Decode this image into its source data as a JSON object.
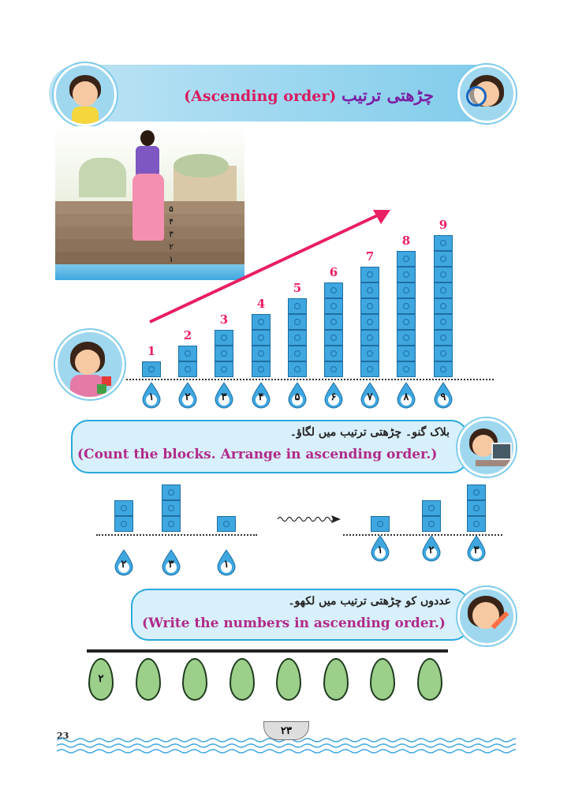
{
  "header": {
    "title_urdu": "چڑھتی ترتیب",
    "title_english": "(Ascending order)"
  },
  "stairs_labels": [
    "۵",
    "۴",
    "۳",
    "۲",
    "۱"
  ],
  "chart_data": {
    "type": "bar",
    "categories": [
      "1",
      "2",
      "3",
      "4",
      "5",
      "6",
      "7",
      "8",
      "9"
    ],
    "values": [
      1,
      2,
      3,
      4,
      5,
      6,
      7,
      8,
      9
    ],
    "bar_labels": [
      "1",
      "2",
      "3",
      "4",
      "5",
      "6",
      "7",
      "8",
      "9"
    ],
    "drop_labels": [
      "۱",
      "۲",
      "۳",
      "۴",
      "۵",
      "۶",
      "۷",
      "۸",
      "۹"
    ]
  },
  "instruction1": {
    "urdu": "بلاک گنو۔ چڑھتی ترتیب میں لگاؤ۔",
    "english": "(Count the blocks. Arrange in ascending order.)"
  },
  "exercise1": {
    "left_values": [
      2,
      3,
      1
    ],
    "left_labels": [
      "۲",
      "۳",
      "۱"
    ],
    "right_values": [
      1,
      2,
      3
    ],
    "right_labels": [
      "۱",
      "۲",
      "۳"
    ]
  },
  "instruction2": {
    "urdu": "عددوں کو چڑھتی ترتیب میں لکھو۔",
    "english": "(Write the numbers in ascending order.)"
  },
  "leaves": [
    "۲",
    "",
    "",
    "",
    "",
    "",
    "",
    ""
  ],
  "footer": {
    "page_number": "23",
    "urdu_page": "۲۳"
  },
  "colors": {
    "accent": "#e91e63",
    "cube": "#3fa7e0",
    "box_border": "#29a9dd",
    "english_text": "#b02a8a"
  }
}
